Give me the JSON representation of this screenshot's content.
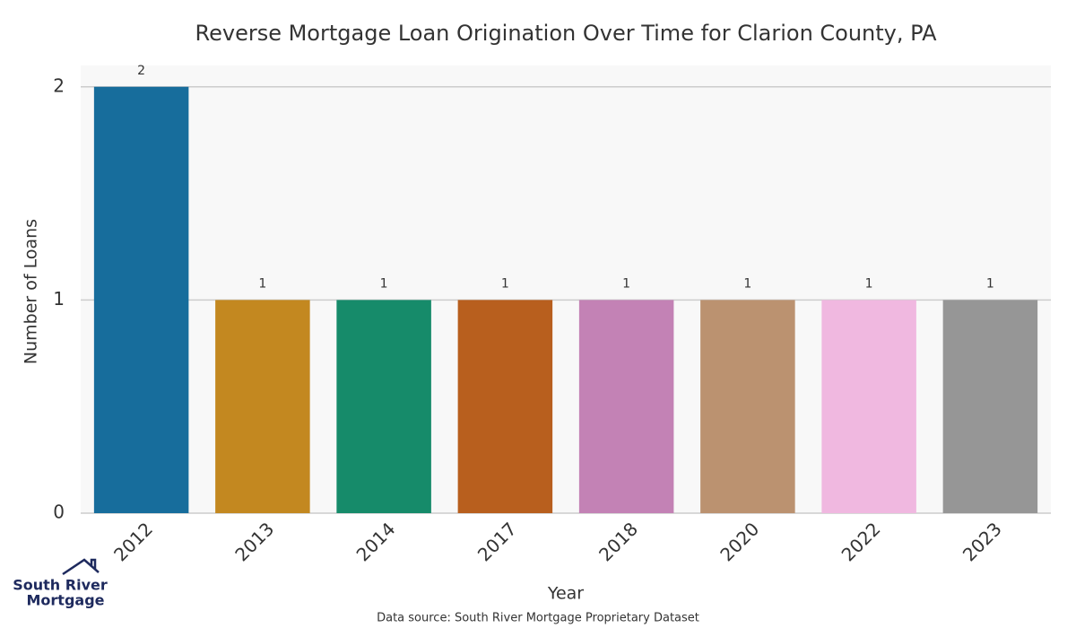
{
  "chart_data": {
    "type": "bar",
    "title": "Reverse Mortgage Loan Origination Over Time for Clarion County, PA",
    "x_label": "Year",
    "y_label": "Number of Loans",
    "categories": [
      "2012",
      "2013",
      "2014",
      "2017",
      "2018",
      "2020",
      "2022",
      "2023"
    ],
    "values": [
      2,
      1,
      1,
      1,
      1,
      1,
      1,
      1
    ],
    "colors": [
      "#176d9c",
      "#c38820",
      "#168b6a",
      "#b85f1e",
      "#c382b5",
      "#bb9270",
      "#f0b8e0",
      "#969696"
    ],
    "ylim": [
      0,
      2.1
    ],
    "yticks": [
      0,
      1,
      2
    ],
    "grid": true,
    "source": "Data source: South River Mortgage Proprietary Dataset",
    "logo": [
      "South River",
      "Mortgage"
    ]
  }
}
